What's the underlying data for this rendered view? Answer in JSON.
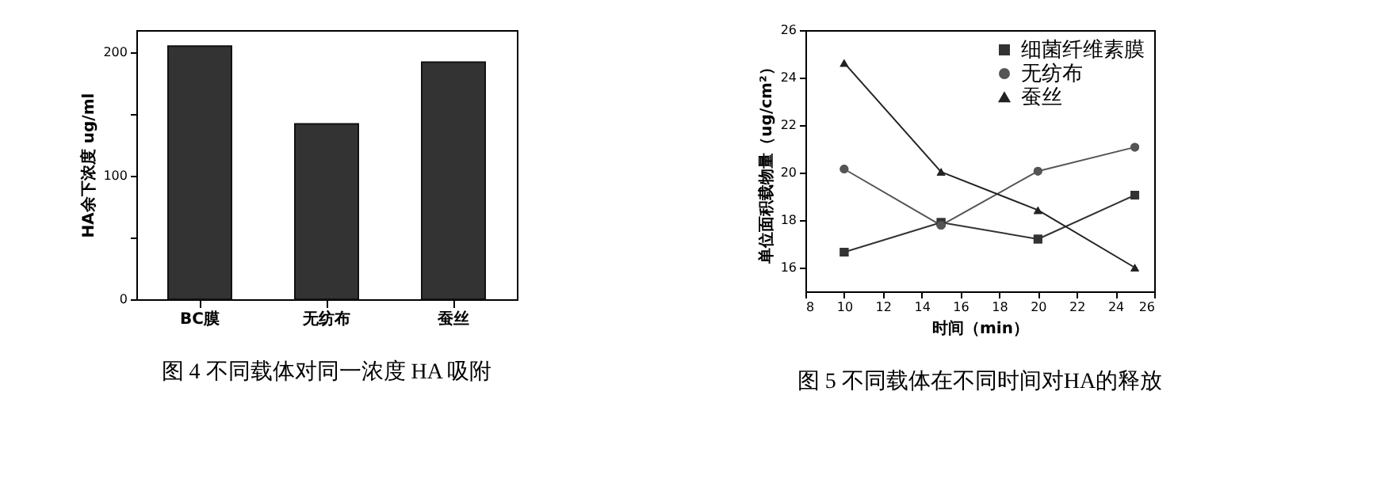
{
  "chart_data": [
    {
      "type": "bar",
      "title": "图 4 不同载体对同一浓度 HA 吸附",
      "ylabel": "HA余下浓度 ug/ml",
      "categories": [
        "BC膜",
        "无纺布",
        "蚕丝"
      ],
      "values": [
        205,
        142,
        192
      ],
      "color": "#333333",
      "ylim": [
        0,
        218
      ],
      "yticks": [
        0,
        {
          "value": 50,
          "label": null
        },
        100,
        {
          "value": 150,
          "label": null
        },
        200
      ],
      "grid": false
    },
    {
      "type": "line",
      "title": "图 5 不同载体在不同时间对HA的释放",
      "xlabel": "时间（min）",
      "ylabel": "单位面积载物量（ug/cm²）",
      "x": [
        10,
        15,
        20,
        25
      ],
      "series": [
        {
          "name": "细菌纤维素膜",
          "color": "#333333",
          "marker": "square",
          "values": [
            16.65,
            17.9,
            17.2,
            19.05
          ]
        },
        {
          "name": "无纺布",
          "color": "#555555",
          "marker": "circle",
          "values": [
            20.15,
            17.78,
            20.06,
            21.07
          ]
        },
        {
          "name": "蚕丝",
          "color": "#222222",
          "marker": "triangle",
          "values": [
            24.62,
            20.03,
            18.42,
            16.0
          ]
        }
      ],
      "xlim": [
        8,
        26
      ],
      "xticks": [
        8,
        10,
        12,
        14,
        16,
        18,
        20,
        22,
        24,
        26
      ],
      "ylim": [
        15,
        26
      ],
      "yticks": [
        16,
        18,
        20,
        22,
        24,
        26
      ],
      "grid": false,
      "legend": "top right",
      "line_style": "solid"
    }
  ]
}
